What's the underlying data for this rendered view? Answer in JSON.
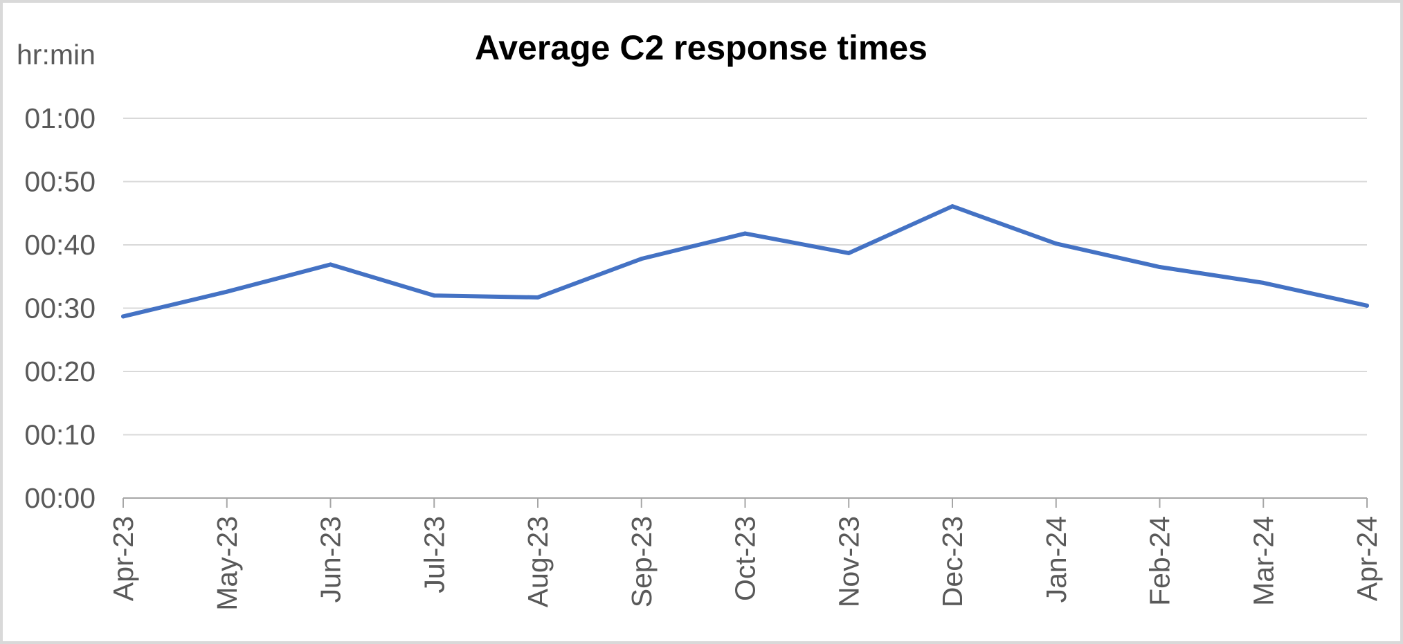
{
  "chart_data": {
    "type": "line",
    "title": "Average C2 response times",
    "xlabel": "",
    "ylabel": "hr:min",
    "categories": [
      "Apr-23",
      "May-23",
      "Jun-23",
      "Jul-23",
      "Aug-23",
      "Sep-23",
      "Oct-23",
      "Nov-23",
      "Dec-23",
      "Jan-24",
      "Feb-24",
      "Mar-24",
      "Apr-24"
    ],
    "y_ticks": [
      "00:00",
      "00:10",
      "00:20",
      "00:30",
      "00:40",
      "00:50",
      "01:00"
    ],
    "ylim": [
      0,
      60
    ],
    "y_unit": "minutes",
    "grid": true,
    "legend": "none",
    "series": [
      {
        "color": "#4472c4",
        "values": [
          28.7,
          32.6,
          36.9,
          32.0,
          31.7,
          37.8,
          41.8,
          38.7,
          46.1,
          40.2,
          36.5,
          34.0,
          30.4
        ]
      }
    ]
  }
}
